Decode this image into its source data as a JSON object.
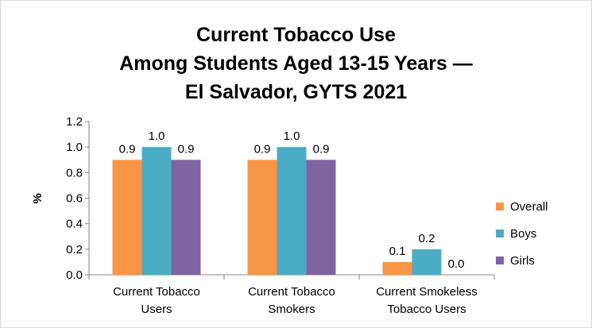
{
  "chart_data": {
    "type": "bar",
    "title_lines": [
      "Current Tobacco Use",
      "Among Students Aged 13-15 Years —",
      "El Salvador, GYTS 2021"
    ],
    "ylabel": "%",
    "xlabel": "",
    "ylim": [
      0,
      1.2
    ],
    "yticks": [
      "0.0",
      "0.2",
      "0.4",
      "0.6",
      "0.8",
      "1.0",
      "1.2"
    ],
    "categories": [
      [
        "Current Tobacco",
        "Users"
      ],
      [
        "Current Tobacco",
        "Smokers"
      ],
      [
        "Current Smokeless",
        "Tobacco Users"
      ]
    ],
    "series": [
      {
        "name": "Overall",
        "color": "#F79646",
        "values": [
          0.9,
          0.9,
          0.1
        ],
        "labels": [
          "0.9",
          "0.9",
          "0.1"
        ]
      },
      {
        "name": "Boys",
        "color": "#4BACC6",
        "values": [
          1.0,
          1.0,
          0.2
        ],
        "labels": [
          "1.0",
          "1.0",
          "0.2"
        ]
      },
      {
        "name": "Girls",
        "color": "#8064A2",
        "values": [
          0.9,
          0.9,
          0.0
        ],
        "labels": [
          "0.9",
          "0.9",
          "0.0"
        ]
      }
    ],
    "grid": false,
    "legend_position": "right"
  }
}
